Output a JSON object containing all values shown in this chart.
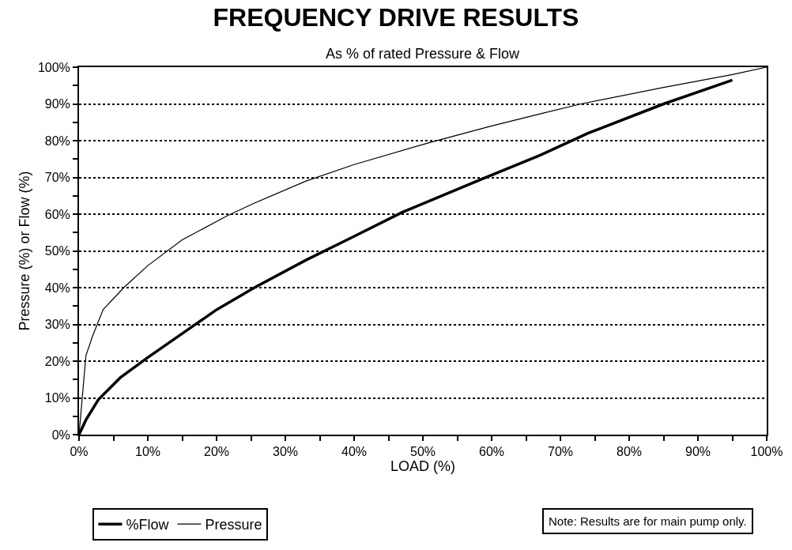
{
  "chart_data": {
    "type": "line",
    "title": "FREQUENCY DRIVE RESULTS",
    "subtitle": "As % of rated Pressure & Flow",
    "xlabel": "LOAD (%)",
    "ylabel": "Pressure (%) or Flow (%)",
    "annotations": [
      "Note: Results are for main pump only."
    ],
    "series": [
      {
        "name": "%Flow",
        "color": "#000000",
        "x": [
          0,
          1,
          2.8,
          6,
          10,
          15,
          20,
          25.5,
          33,
          39.5,
          47,
          58.5,
          67,
          74,
          85,
          95
        ],
        "values": [
          0,
          4,
          9.5,
          15.5,
          21,
          27.5,
          34,
          40,
          47.5,
          53.5,
          60.5,
          69.5,
          76,
          82,
          90,
          96.5
        ]
      },
      {
        "name": "Pressure",
        "color": "#000000",
        "x": [
          0,
          1,
          2,
          3.5,
          6.5,
          10,
          15,
          21.5,
          25.5,
          33,
          40,
          51,
          60,
          67.5,
          73,
          85,
          95,
          100
        ],
        "values": [
          0,
          21.5,
          27,
          34,
          40,
          46,
          53,
          59.5,
          63,
          69,
          73.5,
          79.5,
          84,
          87.5,
          90,
          94.5,
          98,
          100
        ]
      }
    ],
    "xlim": [
      0,
      100
    ],
    "ylim": [
      0,
      100
    ],
    "xticks": [
      {
        "value": 0,
        "label": "0%"
      },
      {
        "value": 5,
        "label": null
      },
      {
        "value": 10,
        "label": "10%"
      },
      {
        "value": 15,
        "label": null
      },
      {
        "value": 20,
        "label": "20%"
      },
      {
        "value": 25,
        "label": null
      },
      {
        "value": 30,
        "label": "30%"
      },
      {
        "value": 35,
        "label": null
      },
      {
        "value": 40,
        "label": "40%"
      },
      {
        "value": 45,
        "label": null
      },
      {
        "value": 50,
        "label": "50%"
      },
      {
        "value": 55,
        "label": null
      },
      {
        "value": 60,
        "label": "60%"
      },
      {
        "value": 65,
        "label": null
      },
      {
        "value": 70,
        "label": "70%"
      },
      {
        "value": 75,
        "label": null
      },
      {
        "value": 80,
        "label": "80%"
      },
      {
        "value": 85,
        "label": null
      },
      {
        "value": 90,
        "label": "90%"
      },
      {
        "value": 95,
        "label": null
      },
      {
        "value": 100,
        "label": "100%"
      }
    ],
    "yticks": [
      {
        "value": 0,
        "label": "0%"
      },
      {
        "value": 5,
        "label": null
      },
      {
        "value": 10,
        "label": "10%"
      },
      {
        "value": 15,
        "label": null
      },
      {
        "value": 20,
        "label": "20%"
      },
      {
        "value": 25,
        "label": null
      },
      {
        "value": 30,
        "label": "30%"
      },
      {
        "value": 35,
        "label": null
      },
      {
        "value": 40,
        "label": "40%"
      },
      {
        "value": 45,
        "label": null
      },
      {
        "value": 50,
        "label": "50%"
      },
      {
        "value": 55,
        "label": null
      },
      {
        "value": 60,
        "label": "60%"
      },
      {
        "value": 65,
        "label": null
      },
      {
        "value": 70,
        "label": "70%"
      },
      {
        "value": 75,
        "label": null
      },
      {
        "value": 80,
        "label": "80%"
      },
      {
        "value": 85,
        "label": null
      },
      {
        "value": 90,
        "label": "90%"
      },
      {
        "value": 95,
        "label": null
      },
      {
        "value": 100,
        "label": "100%"
      }
    ],
    "grid": "y",
    "legend": "bottom left",
    "marker": "none",
    "line_style": "solid"
  }
}
